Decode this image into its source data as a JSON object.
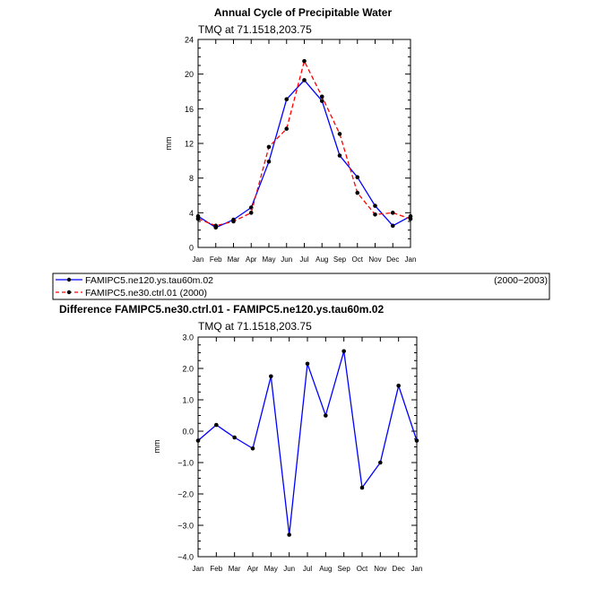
{
  "chart_data": [
    {
      "type": "line",
      "title": "Annual Cycle of Precipitable Water",
      "subtitle": "TMQ  at  71.1518,203.75",
      "xlabel": "",
      "ylabel": "mm",
      "categories": [
        "Jan",
        "Feb",
        "Mar",
        "Apr",
        "May",
        "Jun",
        "Jul",
        "Aug",
        "Sep",
        "Oct",
        "Nov",
        "Dec",
        "Jan"
      ],
      "yticks": [
        "0",
        "4",
        "8",
        "12",
        "16",
        "20",
        "24"
      ],
      "ylim": [
        0,
        24
      ],
      "series": [
        {
          "name": "FAMIPC5.ne120.ys.tau60m.02",
          "period": "(2000−2003)",
          "color": "#0000ff",
          "dash": "solid",
          "values": [
            3.6,
            2.3,
            3.2,
            4.6,
            9.9,
            17.1,
            19.3,
            16.9,
            10.6,
            8.1,
            4.8,
            2.5,
            3.6
          ]
        },
        {
          "name": "FAMIPC5.ne30.ctrl.01  (2000)",
          "color": "#ff0000",
          "dash": "dashed",
          "values": [
            3.3,
            2.5,
            3.0,
            4.0,
            11.6,
            13.7,
            21.5,
            17.4,
            13.1,
            6.3,
            3.8,
            4.0,
            3.3
          ]
        }
      ],
      "grid": false
    },
    {
      "type": "line",
      "title": "Difference FAMIPC5.ne30.ctrl.01 - FAMIPC5.ne120.ys.tau60m.02",
      "subtitle": "TMQ  at  71.1518,203.75",
      "xlabel": "",
      "ylabel": "mm",
      "categories": [
        "Jan",
        "Feb",
        "Mar",
        "Apr",
        "May",
        "Jun",
        "Jul",
        "Aug",
        "Sep",
        "Oct",
        "Nov",
        "Dec",
        "Jan"
      ],
      "yticks": [
        "−4.0",
        "−3.0",
        "−2.0",
        "−1.0",
        "0.0",
        "1.0",
        "2.0",
        "3.0"
      ],
      "ylim": [
        -4,
        3
      ],
      "series": [
        {
          "color": "#0000ff",
          "dash": "solid",
          "values": [
            -0.3,
            0.2,
            -0.2,
            -0.55,
            1.75,
            -3.3,
            2.15,
            0.5,
            2.55,
            -1.8,
            -1.0,
            1.45,
            -0.3
          ]
        }
      ],
      "grid": false
    }
  ]
}
